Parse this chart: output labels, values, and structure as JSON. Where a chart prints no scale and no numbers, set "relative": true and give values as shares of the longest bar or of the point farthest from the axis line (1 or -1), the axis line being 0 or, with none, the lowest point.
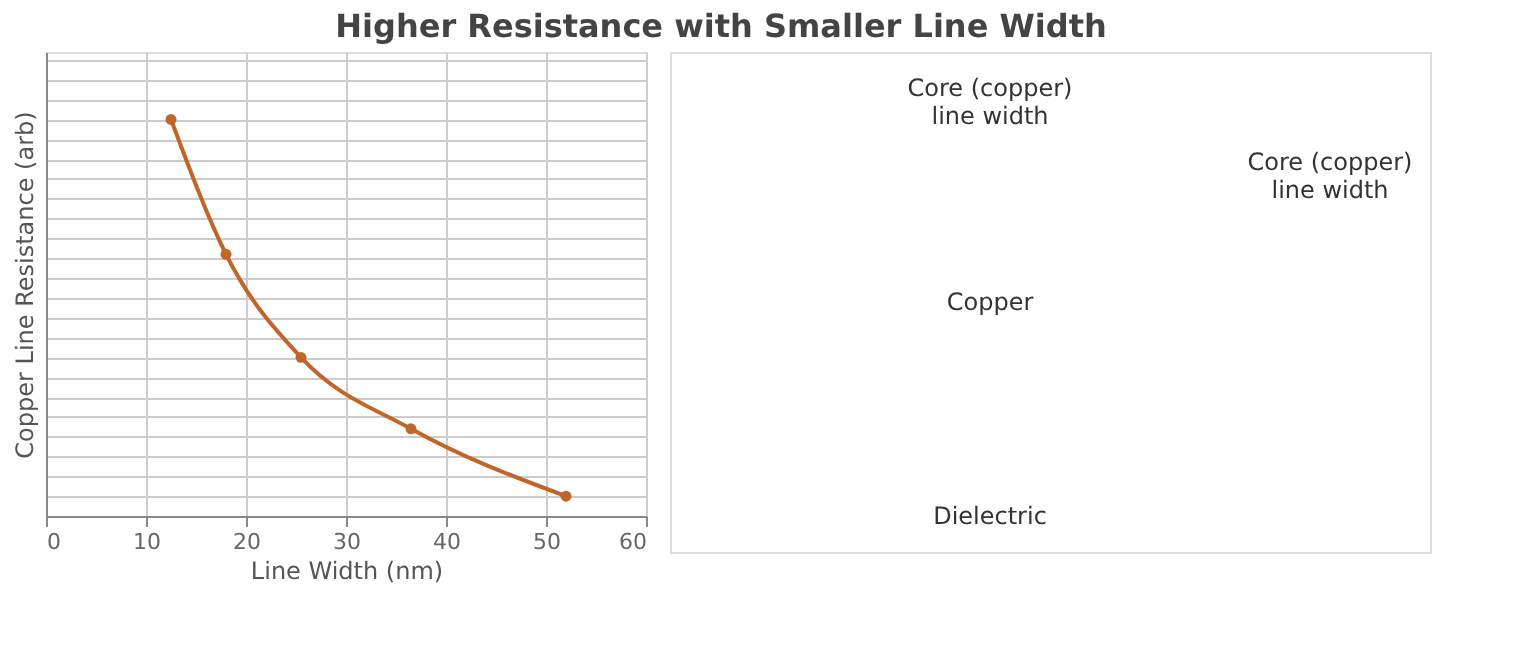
{
  "chart_data": {
    "type": "line",
    "title": "Higher Resistance with Smaller Line Width",
    "xlabel": "Line Width (nm)",
    "ylabel": "Copper Line Resistance (arb)",
    "x": [
      12.5,
      18,
      25.5,
      36.5,
      52
    ],
    "series": [
      {
        "color": "#c0662b",
        "values": [
          1.0,
          0.66,
          0.4,
          0.22,
          0.05
        ]
      }
    ],
    "relative": true,
    "xlim": [
      0,
      60
    ],
    "xticks": [
      0,
      10,
      20,
      30,
      40,
      50,
      60
    ],
    "grid": true,
    "marker": "circle",
    "line_style": "solid",
    "annotations": [
      "Core (copper)\nline width",
      "Copper",
      "Dielectric",
      "Core (copper)\nline width"
    ]
  }
}
